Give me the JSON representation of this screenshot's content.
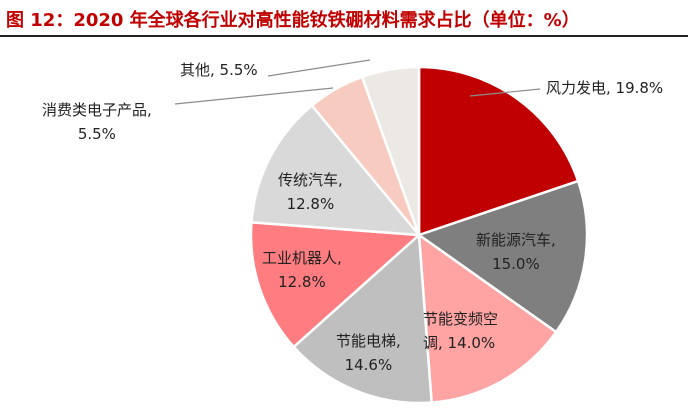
{
  "figure": {
    "title": "图 12：2020 年全球各行业对高性能钕铁硼材料需求占比（单位：%）"
  },
  "chart_data": {
    "type": "pie",
    "title": "2020 年全球各行业对高性能钕铁硼材料需求占比（单位：%）",
    "start_angle": "12 o'clock, clockwise",
    "categories": [
      "风力发电",
      "新能源汽车",
      "节能变频空调",
      "节能电梯",
      "工业机器人",
      "传统汽车",
      "消费类电子产品",
      "其他"
    ],
    "values": [
      19.8,
      15.0,
      14.0,
      14.6,
      12.8,
      12.8,
      5.5,
      5.5
    ],
    "colors": [
      "#c00000",
      "#7f7f7f",
      "#ffa3a3",
      "#bfbfbf",
      "#ff7c80",
      "#d9d9d9",
      "#f8cbc0",
      "#ece9e4"
    ],
    "labels": [
      {
        "line1": "风力发电, 19.8%",
        "line2": ""
      },
      {
        "line1": "新能源汽车,",
        "line2": "15.0%"
      },
      {
        "line1": "节能变频空",
        "line2": "调, 14.0%"
      },
      {
        "line1": "节能电梯,",
        "line2": "14.6%"
      },
      {
        "line1": "工业机器人,",
        "line2": "12.8%"
      },
      {
        "line1": "传统汽车,",
        "line2": "12.8%"
      },
      {
        "line1": "消费类电子产品,",
        "line2": "5.5%"
      },
      {
        "line1": "其他, 5.5%",
        "line2": ""
      }
    ],
    "legend": "none (data labels)",
    "unit": "%"
  }
}
